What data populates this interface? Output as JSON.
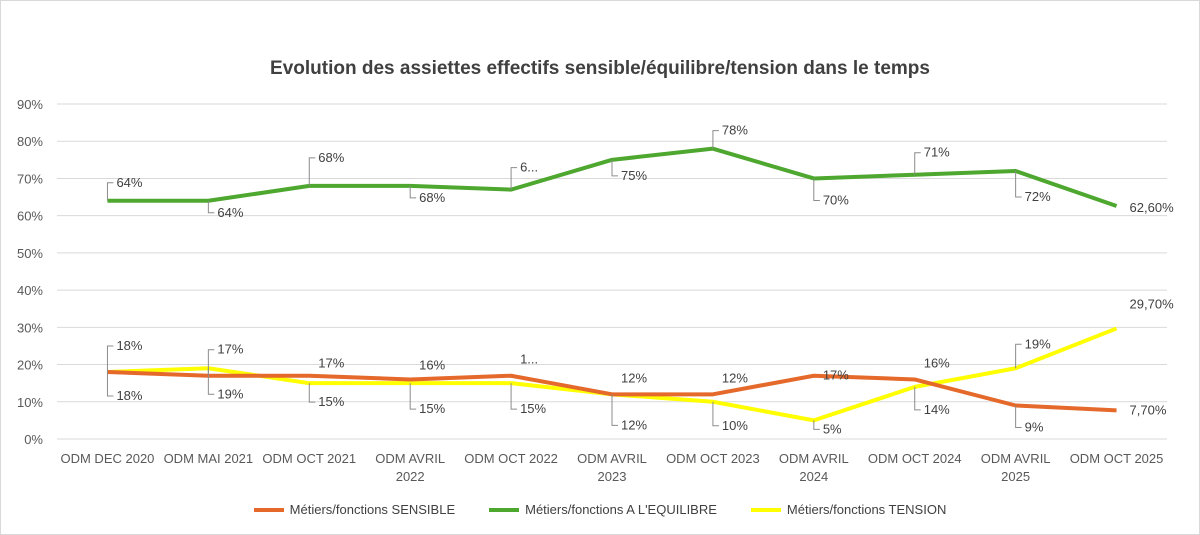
{
  "chart_data": {
    "type": "line",
    "title": "Evolution des assiettes effectifs sensible/équilibre/tension dans le temps",
    "categories": [
      "ODM DEC 2020",
      "ODM MAI 2021",
      "ODM OCT 2021",
      "ODM AVRIL 2022",
      "ODM OCT 2022",
      "ODM AVRIL 2023",
      "ODM OCT 2023",
      "ODM AVRIL 2024",
      "ODM OCT 2024",
      "ODM AVRIL 2025",
      "ODM OCT 2025"
    ],
    "yticks": [
      "0%",
      "10%",
      "20%",
      "30%",
      "40%",
      "50%",
      "60%",
      "70%",
      "80%",
      "90%"
    ],
    "ylim": [
      0,
      90
    ],
    "grid": true,
    "legend_position": "bottom",
    "series": [
      {
        "name": "Métiers/fonctions SENSIBLE",
        "color": "#e4692a",
        "values": [
          18,
          17,
          17,
          16,
          17,
          12,
          12,
          17,
          16,
          9,
          7.7
        ],
        "labels": [
          "18%",
          "17%",
          "17%",
          "16%",
          "1...",
          "12%",
          "12%",
          "17%",
          "16%",
          "9%",
          "7,70%"
        ]
      },
      {
        "name": "Métiers/fonctions A L'EQUILIBRE",
        "color": "#4ea72e",
        "values": [
          64,
          64,
          68,
          68,
          67,
          75,
          78,
          70,
          71,
          72,
          62.6
        ],
        "labels": [
          "64%",
          "64%",
          "68%",
          "68%",
          "6...",
          "75%",
          "78%",
          "70%",
          "71%",
          "72%",
          "62,60%"
        ]
      },
      {
        "name": "Métiers/fonctions TENSION",
        "color": "#ffff00",
        "values": [
          18,
          19,
          15,
          15,
          15,
          12,
          10,
          5,
          14,
          19,
          29.7
        ],
        "labels": [
          "18%",
          "19%",
          "15%",
          "15%",
          "15%",
          "12%",
          "10%",
          "5%",
          "14%",
          "19%",
          "29,70%"
        ]
      }
    ]
  }
}
